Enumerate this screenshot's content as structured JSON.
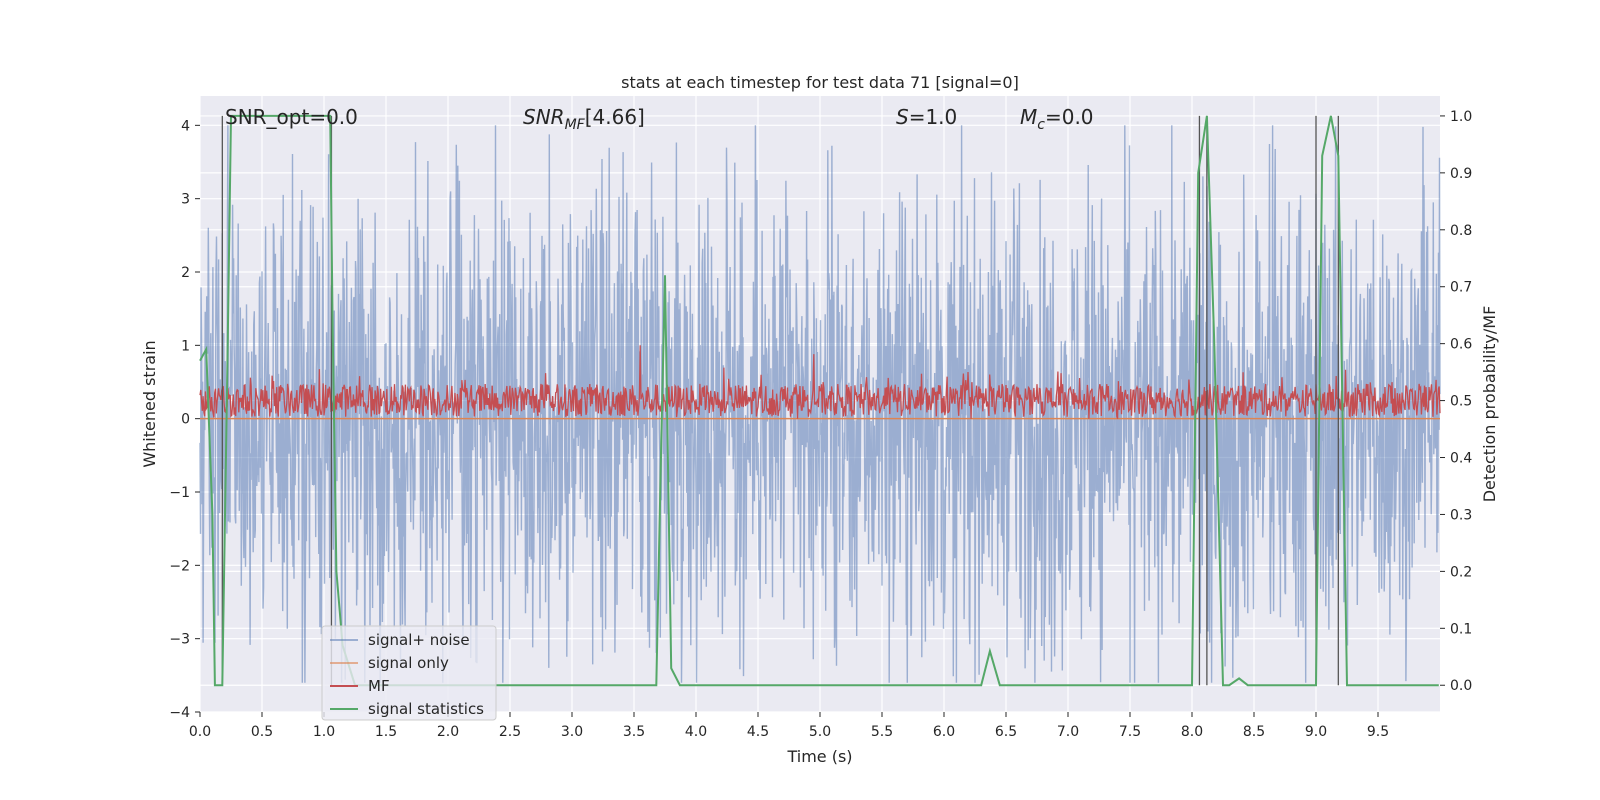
{
  "chart_data": {
    "type": "line",
    "title": "stats at each timestep for test data 71 [signal=0]",
    "xlabel": "Time (s)",
    "ylabel_left": "Whitened strain",
    "ylabel_right": "Detection probability/MF",
    "xlim": [
      0.0,
      10.0
    ],
    "ylim_left": [
      -4.0,
      4.4
    ],
    "ylim_right": [
      -0.047,
      1.035
    ],
    "x_ticks": [
      "0.0",
      "0.5",
      "1.0",
      "1.5",
      "2.0",
      "2.5",
      "3.0",
      "3.5",
      "4.0",
      "4.5",
      "5.0",
      "5.5",
      "6.0",
      "6.5",
      "7.0",
      "7.5",
      "8.0",
      "8.5",
      "9.0",
      "9.5"
    ],
    "y_ticks_left": [
      "−4",
      "−3",
      "−2",
      "−1",
      "0",
      "1",
      "2",
      "3",
      "4"
    ],
    "y_ticks_right": [
      "0.0",
      "0.1",
      "0.2",
      "0.3",
      "0.4",
      "0.5",
      "0.6",
      "0.7",
      "0.8",
      "0.9",
      "1.0"
    ],
    "grid": true,
    "annotations": {
      "snr_opt": "SNR_opt=0.0",
      "snr_mf": "[4.66]",
      "s": "=1.0",
      "mc": "=0.0"
    },
    "legend": {
      "placement": "lower-left",
      "entries": [
        "signal+ noise",
        "signal only",
        "MF",
        "signal statistics"
      ]
    },
    "series": [
      {
        "name": "signal+ noise",
        "axis": "left",
        "color": "#4c72b0",
        "description": "whitened strain noise spanning roughly -3.5 to 4.0",
        "amplitude_typical": 1.7,
        "peak_max": 4.0,
        "peak_min": -3.6
      },
      {
        "name": "signal only",
        "axis": "left",
        "color": "#dd8452",
        "value": 0.0
      },
      {
        "name": "MF",
        "axis": "left",
        "color": "#c44e52",
        "center": 0.25,
        "range": [
          0.0,
          0.8
        ],
        "peaks": [
          {
            "x": 3.55,
            "y": 1.0
          },
          {
            "x": 4.95,
            "y": 0.88
          }
        ]
      },
      {
        "name": "signal statistics",
        "axis": "right",
        "color": "#55a868",
        "x": [
          0.0,
          0.05,
          0.1,
          0.12,
          0.18,
          0.22,
          0.25,
          1.05,
          1.07,
          1.1,
          1.15,
          1.25,
          3.68,
          3.72,
          3.75,
          3.8,
          3.87,
          6.3,
          6.37,
          6.45,
          6.5,
          8.0,
          8.05,
          8.12,
          8.18,
          8.25,
          8.3,
          8.38,
          8.45,
          9.0,
          9.05,
          9.12,
          9.18,
          9.25,
          9.99
        ],
        "y": [
          0.57,
          0.59,
          0.3,
          0.0,
          0.0,
          0.55,
          1.0,
          1.0,
          0.62,
          0.2,
          0.07,
          0.0,
          0.0,
          0.43,
          0.72,
          0.03,
          0.0,
          0.0,
          0.06,
          0.0,
          0.0,
          0.0,
          0.9,
          1.0,
          0.6,
          0.0,
          0.0,
          0.012,
          0.0,
          0.0,
          0.93,
          1.0,
          0.93,
          0.0,
          0.0
        ]
      }
    ],
    "vertical_markers_x": [
      0.18,
      1.06,
      8.06,
      8.12,
      9.0,
      9.18
    ]
  }
}
